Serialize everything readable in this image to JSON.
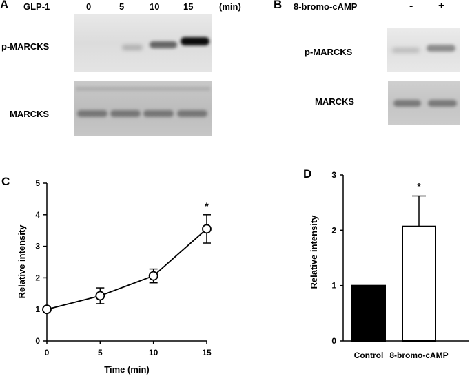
{
  "panels": {
    "A": {
      "letter": "A",
      "treatment_label": "GLP-1",
      "lanes": [
        "0",
        "5",
        "10",
        "15"
      ],
      "unit": "(min)",
      "rows": [
        "p-MARCKS",
        "MARCKS"
      ],
      "band_intensity": {
        "p-MARCKS": [
          0.05,
          0.18,
          0.55,
          0.95
        ],
        "MARCKS": [
          0.55,
          0.55,
          0.55,
          0.55
        ]
      }
    },
    "B": {
      "letter": "B",
      "treatment_label": "8-bromo-cAMP",
      "lanes": [
        "-",
        "+"
      ],
      "rows": [
        "p-MARCKS",
        "MARCKS"
      ],
      "band_intensity": {
        "p-MARCKS": [
          0.15,
          0.4
        ],
        "MARCKS": [
          0.55,
          0.55
        ]
      }
    }
  },
  "chart_data": [
    {
      "panel": "C",
      "type": "line",
      "xlabel": "Time (min)",
      "ylabel": "Relative intensity",
      "x": [
        0,
        5,
        10,
        15
      ],
      "y": [
        1.0,
        1.43,
        2.06,
        3.55
      ],
      "err": [
        0,
        0.25,
        0.22,
        0.45
      ],
      "xlim": [
        0,
        15
      ],
      "ylim": [
        0,
        5
      ],
      "xticks": [
        "0",
        "5",
        "10",
        "15"
      ],
      "yticks": [
        "0",
        "1",
        "2",
        "3",
        "4",
        "5"
      ],
      "marker": "open-circle",
      "annotations": [
        {
          "text": "*",
          "x": 15
        }
      ]
    },
    {
      "panel": "D",
      "type": "bar",
      "ylabel": "Relative intensity",
      "categories": [
        "Control",
        "8-bromo-cAMP"
      ],
      "values": [
        1.0,
        2.07
      ],
      "err": [
        0,
        0.55
      ],
      "ylim": [
        0,
        3
      ],
      "yticks": [
        "0",
        "1",
        "2",
        "3"
      ],
      "bar_fills": [
        "#000000",
        "#ffffff"
      ],
      "annotations": [
        {
          "text": "*",
          "category": "8-bromo-cAMP"
        }
      ]
    }
  ]
}
